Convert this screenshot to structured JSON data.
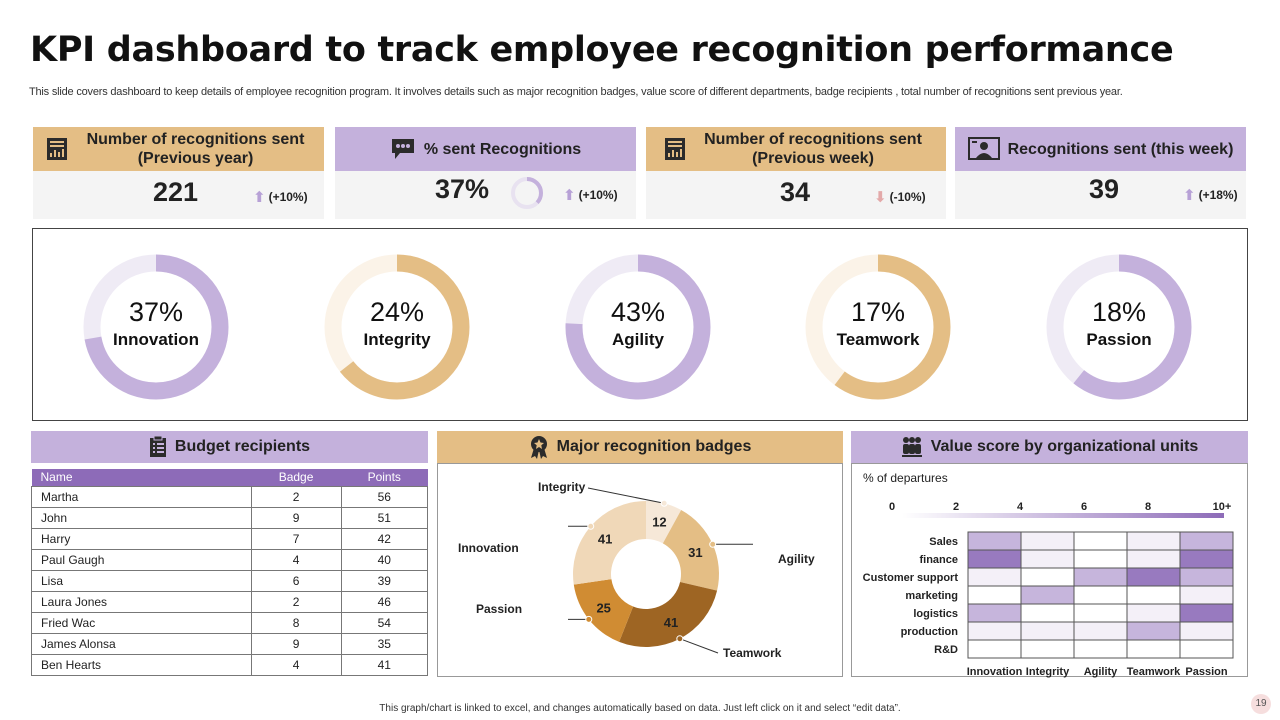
{
  "title": "KPI dashboard to track employee recognition performance",
  "subtitle": "This slide covers dashboard to keep details of employee recognition program. It involves details such as major recognition badges, value score of different departments, badge recipients , total number of recognitions sent previous year.",
  "kpis": [
    {
      "label": "Number of recognitions sent (Previous year)",
      "value": "221",
      "change": "(+10%)",
      "direction": "up",
      "icon": "report-icon"
    },
    {
      "label": "% sent Recognitions",
      "value": "37%",
      "change": "(+10%)",
      "direction": "up",
      "icon": "chat-bubble-icon",
      "ring_fraction": 0.37
    },
    {
      "label": "Number of recognitions sent (Previous week)",
      "value": "34",
      "change": "(-10%)",
      "direction": "down",
      "icon": "report-icon"
    },
    {
      "label": "Recognitions sent (this week)",
      "value": "39",
      "change": "(+18%)",
      "direction": "up",
      "icon": "presenter-icon"
    }
  ],
  "donuts": [
    {
      "pct": "37%",
      "label": "Innovation",
      "value": 0.37,
      "color": "#c4b1dc",
      "track": "#efebf5"
    },
    {
      "pct": "24%",
      "label": "Integrity",
      "value": 0.24,
      "color": "#e4be85",
      "track": "#fbf3e8"
    },
    {
      "pct": "43%",
      "label": "Agility",
      "value": 0.43,
      "color": "#c4b1dc",
      "track": "#efebf5"
    },
    {
      "pct": "17%",
      "label": "Teamwork",
      "value": 0.17,
      "color": "#e4be85",
      "track": "#fbf3e8"
    },
    {
      "pct": "18%",
      "label": "Passion",
      "value": 0.18,
      "color": "#c4b1dc",
      "track": "#efebf5"
    }
  ],
  "budget": {
    "title": "Budget recipients",
    "columns": [
      "Name",
      "Badge",
      "Points"
    ],
    "rows": [
      [
        "Martha",
        "2",
        "56"
      ],
      [
        "John",
        "9",
        "51"
      ],
      [
        "Harry",
        "7",
        "42"
      ],
      [
        "Paul Gaugh",
        "4",
        "40"
      ],
      [
        "Lisa",
        "6",
        "39"
      ],
      [
        "Laura Jones",
        "2",
        "46"
      ],
      [
        "Fried Wac",
        "8",
        "54"
      ],
      [
        "James Alonsa",
        "9",
        "35"
      ],
      [
        "Ben Hearts",
        "4",
        "41"
      ]
    ]
  },
  "badges": {
    "title": "Major recognition badges",
    "chart_data": {
      "type": "pie",
      "categories": [
        "Integrity",
        "Agility",
        "Teamwork",
        "Passion",
        "Innovation"
      ],
      "values": [
        12,
        31,
        41,
        25,
        41
      ],
      "colors": [
        "#f6e8d8",
        "#e4be85",
        "#9e6523",
        "#d08c33",
        "#f0d8b8"
      ]
    }
  },
  "value_score": {
    "title": "Value score by organizational units",
    "legend_label": "% of departures",
    "legend_ticks": [
      "0",
      "2",
      "4",
      "6",
      "8",
      "10+"
    ],
    "chart_data": {
      "type": "heatmap",
      "rows": [
        "Sales",
        "finance",
        "Customer support",
        "marketing",
        "logistics",
        "production",
        "R&D"
      ],
      "columns": [
        "Innovation",
        "Integrity",
        "Agility",
        "Teamwork",
        "Passion"
      ],
      "values": [
        [
          5,
          1,
          0,
          1,
          5
        ],
        [
          9,
          1,
          0,
          1,
          9
        ],
        [
          1,
          0,
          5,
          9,
          5
        ],
        [
          0,
          5,
          0,
          0,
          1
        ],
        [
          5,
          0,
          0,
          1,
          9
        ],
        [
          1,
          1,
          1,
          5,
          1
        ],
        [
          0,
          0,
          0,
          0,
          0
        ]
      ],
      "scale": [
        0,
        10
      ]
    }
  },
  "footer": "This graph/chart is linked to excel, and changes automatically based on data. Just left click on it and select “edit data”.",
  "page_number": "19"
}
